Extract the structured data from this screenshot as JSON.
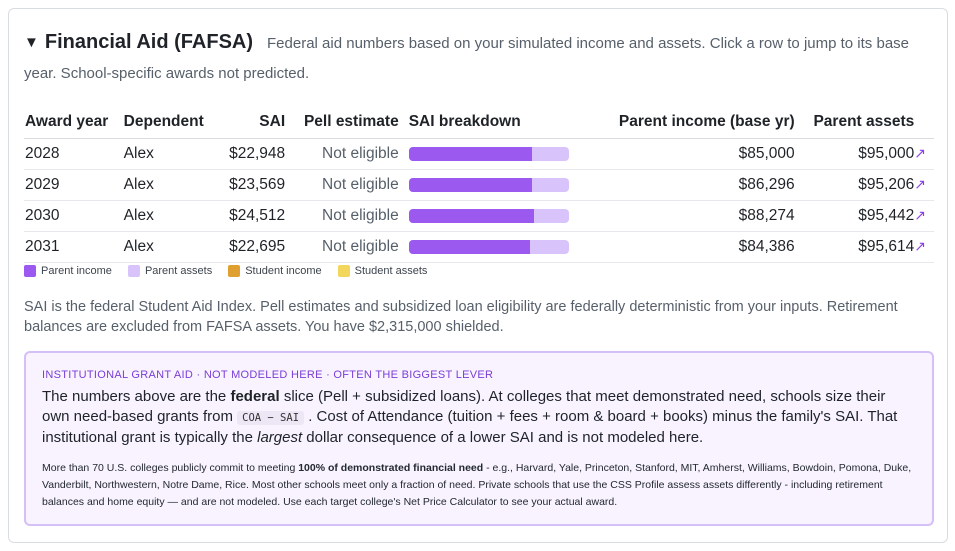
{
  "header": {
    "caret": "▼",
    "title": "Financial Aid (FAFSA)",
    "description": "Federal aid numbers based on your simulated income and assets. Click a row to jump to its base year. School-specific awards not predicted."
  },
  "table": {
    "columns": [
      "Award year",
      "Dependent",
      "SAI",
      "Pell estimate",
      "SAI breakdown",
      "Parent income (base yr)",
      "Parent assets"
    ],
    "rows": [
      {
        "year": "2028",
        "dependent": "Alex",
        "sai": "$22,948",
        "pell": "Not eligible",
        "breakdown": {
          "parent_income": 0.77,
          "parent_assets": 0.23
        },
        "parent_income": "$85,000",
        "parent_assets": "$95,000",
        "jump": "↗"
      },
      {
        "year": "2029",
        "dependent": "Alex",
        "sai": "$23,569",
        "pell": "Not eligible",
        "breakdown": {
          "parent_income": 0.77,
          "parent_assets": 0.23
        },
        "parent_income": "$86,296",
        "parent_assets": "$95,206",
        "jump": "↗"
      },
      {
        "year": "2030",
        "dependent": "Alex",
        "sai": "$24,512",
        "pell": "Not eligible",
        "breakdown": {
          "parent_income": 0.78,
          "parent_assets": 0.22
        },
        "parent_income": "$88,274",
        "parent_assets": "$95,442",
        "jump": "↗"
      },
      {
        "year": "2031",
        "dependent": "Alex",
        "sai": "$22,695",
        "pell": "Not eligible",
        "breakdown": {
          "parent_income": 0.76,
          "parent_assets": 0.24
        },
        "parent_income": "$84,386",
        "parent_assets": "$95,614",
        "jump": "↗"
      }
    ]
  },
  "legend": [
    {
      "label": "Parent income",
      "color": "#9b59ef"
    },
    {
      "label": "Parent assets",
      "color": "#d8c4fb"
    },
    {
      "label": "Student income",
      "color": "#e0a030"
    },
    {
      "label": "Student assets",
      "color": "#f2d75c"
    }
  ],
  "note": "SAI is the federal Student Aid Index. Pell estimates and subsidized loan eligibility are federally deterministic from your inputs. Retirement balances are excluded from FAFSA assets. You have $2,315,000 shielded.",
  "institutional": {
    "kicker": "INSTITUTIONAL GRANT AID · NOT MODELED HERE · OFTEN THE BIGGEST LEVER",
    "p1_a": "The numbers above are the ",
    "p1_bold": "federal",
    "p1_b": " slice (Pell + subsidized loans). At colleges that meet demonstrated need, schools size their own need-based grants from ",
    "p1_code": "COA − SAI",
    "p1_c": " . Cost of Attendance (tuition + fees + room & board + books) minus the family's SAI. That institutional grant is typically the ",
    "p1_em": "largest",
    "p1_d": " dollar consequence of a lower SAI and is not modeled here.",
    "p2_a": "More than 70 U.S. colleges publicly commit to meeting ",
    "p2_bold": "100% of demonstrated financial need",
    "p2_b": " - e.g., Harvard, Yale, Princeton, Stanford, MIT, Amherst, Williams, Bowdoin, Pomona, Duke, Vanderbilt, Northwestern, Notre Dame, Rice. Most other schools meet only a fraction of need. Private schools that use the CSS Profile assess assets differently - including retirement balances and home equity — and are not modeled. Use each target college's Net Price Calculator to see your actual award."
  }
}
